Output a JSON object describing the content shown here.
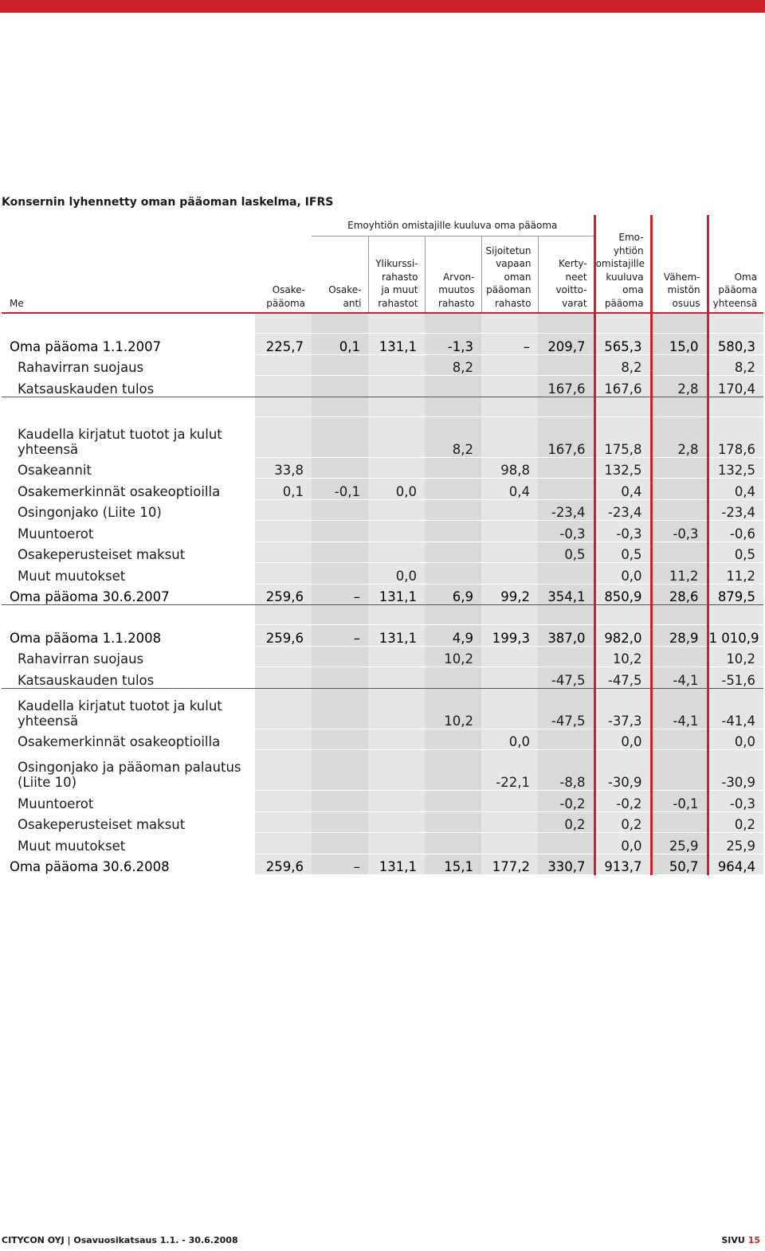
{
  "colors": {
    "accent": "#cc2229",
    "shade_dark": "#d9d9d9",
    "shade_light": "#e6e6e6"
  },
  "title": "Konsernin lyhennetty oman pääoman laskelma, IFRS",
  "header": {
    "unit_label": "Me",
    "group_label": "Emoyhtiön omistajille kuuluva oma pääoma",
    "columns": [
      "Osake-\npääoma",
      "Osake-\nanti",
      "Ylikurssi-\nrahasto\nja muut\nrahastot",
      "Arvon-\nmuutos\nrahasto",
      "Sijoitetun\nvapaan\noman\npääoman\nrahasto",
      "Kerty-\nneet\nvoitto-\nvarat",
      "Emo-\nyhtiön\nomistajille\nkuuluva\noma\npääoma",
      "Vähem-\nmistön\nosuus",
      "Oma\npääoma\nyhteensä"
    ]
  },
  "rows": [
    {
      "type": "spacer"
    },
    {
      "label": "Oma pääoma 1.1.2007",
      "values": [
        "225,7",
        "0,1",
        "131,1",
        "-1,3",
        "–",
        "209,7",
        "565,3",
        "15,0",
        "580,3"
      ],
      "style": "strong"
    },
    {
      "label": "Rahavirran suojaus",
      "values": [
        "",
        "",
        "",
        "8,2",
        "",
        "",
        "8,2",
        "",
        "8,2"
      ]
    },
    {
      "label": "Katsauskauden tulos",
      "values": [
        "",
        "",
        "",
        "",
        "",
        "167,6",
        "167,6",
        "2,8",
        "170,4"
      ],
      "style": "line-below"
    },
    {
      "type": "spacer"
    },
    {
      "label": "Kaudella kirjatut tuotot ja kulut yhteensä",
      "values": [
        "",
        "",
        "",
        "8,2",
        "",
        "167,6",
        "175,8",
        "2,8",
        "178,6"
      ],
      "style": "tall"
    },
    {
      "label": "Osakeannit",
      "values": [
        "33,8",
        "",
        "",
        "",
        "98,8",
        "",
        "132,5",
        "",
        "132,5"
      ]
    },
    {
      "label": "Osakemerkinnät osakeoptioilla",
      "values": [
        "0,1",
        "-0,1",
        "0,0",
        "",
        "0,4",
        "",
        "0,4",
        "",
        "0,4"
      ]
    },
    {
      "label": "Osingonjako (Liite 10)",
      "values": [
        "",
        "",
        "",
        "",
        "",
        "-23,4",
        "-23,4",
        "",
        "-23,4"
      ]
    },
    {
      "label": "Muuntoerot",
      "values": [
        "",
        "",
        "",
        "",
        "",
        "-0,3",
        "-0,3",
        "-0,3",
        "-0,6"
      ]
    },
    {
      "label": "Osakeperusteiset maksut",
      "values": [
        "",
        "",
        "",
        "",
        "",
        "0,5",
        "0,5",
        "",
        "0,5"
      ]
    },
    {
      "label": "Muut muutokset",
      "values": [
        "",
        "",
        "0,0",
        "",
        "",
        "",
        "0,0",
        "11,2",
        "11,2"
      ]
    },
    {
      "label": "Oma pääoma 30.6.2007",
      "values": [
        "259,6",
        "–",
        "131,1",
        "6,9",
        "99,2",
        "354,1",
        "850,9",
        "28,6",
        "879,5"
      ],
      "style": "strong line-above line-below"
    },
    {
      "type": "spacer"
    },
    {
      "label": "Oma pääoma 1.1.2008",
      "values": [
        "259,6",
        "–",
        "131,1",
        "4,9",
        "199,3",
        "387,0",
        "982,0",
        "28,9",
        "1 010,9"
      ],
      "style": "strong"
    },
    {
      "label": "Rahavirran suojaus",
      "values": [
        "",
        "",
        "",
        "10,2",
        "",
        "",
        "10,2",
        "",
        "10,2"
      ]
    },
    {
      "label": "Katsauskauden tulos",
      "values": [
        "",
        "",
        "",
        "",
        "",
        "-47,5",
        "-47,5",
        "-4,1",
        "-51,6"
      ],
      "style": "line-below"
    },
    {
      "label": "Kaudella kirjatut tuotot ja kulut yhteensä",
      "values": [
        "",
        "",
        "",
        "10,2",
        "",
        "-47,5",
        "-37,3",
        "-4,1",
        "-41,4"
      ],
      "style": "tall"
    },
    {
      "label": "Osakemerkinnät osakeoptioilla",
      "values": [
        "",
        "",
        "",
        "",
        "0,0",
        "",
        "0,0",
        "",
        "0,0"
      ]
    },
    {
      "label": "Osingonjako ja pääoman palautus (Liite 10)",
      "values": [
        "",
        "",
        "",
        "",
        "-22,1",
        "-8,8",
        "-30,9",
        "",
        "-30,9"
      ],
      "style": "tall"
    },
    {
      "label": "Muuntoerot",
      "values": [
        "",
        "",
        "",
        "",
        "",
        "-0,2",
        "-0,2",
        "-0,1",
        "-0,3"
      ]
    },
    {
      "label": "Osakeperusteiset maksut",
      "values": [
        "",
        "",
        "",
        "",
        "",
        "0,2",
        "0,2",
        "",
        "0,2"
      ]
    },
    {
      "label": "Muut muutokset",
      "values": [
        "",
        "",
        "",
        "",
        "",
        "",
        "0,0",
        "25,9",
        "25,9"
      ]
    },
    {
      "label": "Oma pääoma 30.6.2008",
      "values": [
        "259,6",
        "–",
        "131,1",
        "15,1",
        "177,2",
        "330,7",
        "913,7",
        "50,7",
        "964,4"
      ],
      "style": "strong line-above"
    }
  ],
  "footer": {
    "left": "CITYCON OYJ | Osavuosikatsaus 1.1. - 30.6.2008",
    "right_prefix": "SIVU",
    "page_number": "15"
  }
}
